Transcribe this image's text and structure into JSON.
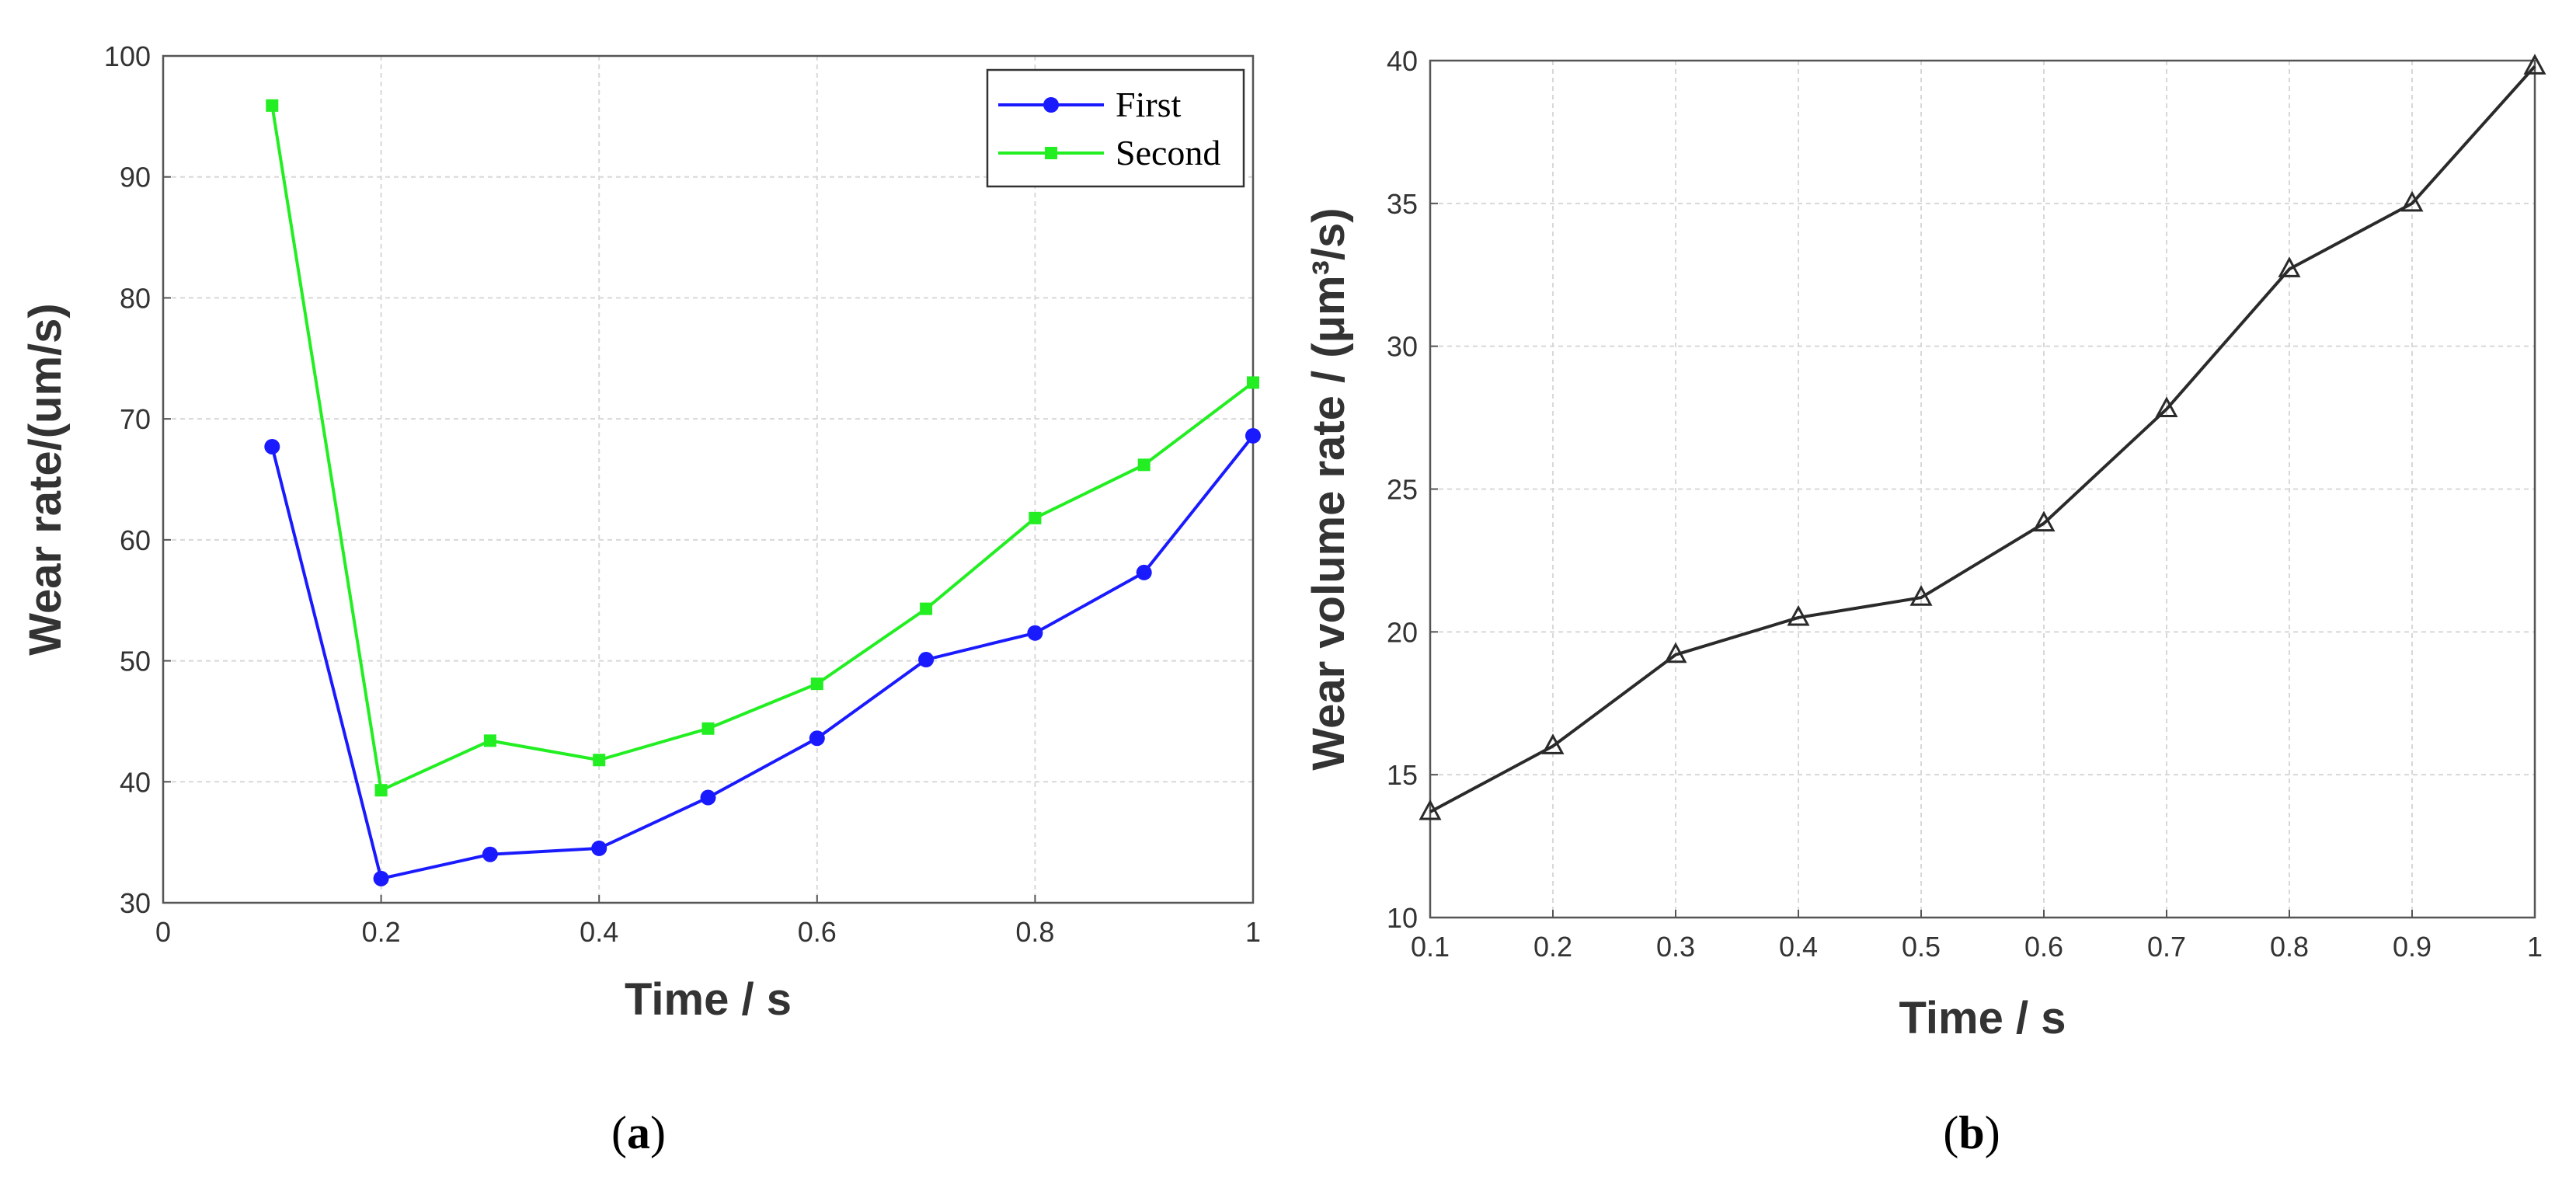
{
  "chart_data": [
    {
      "type": "line",
      "panel_label": "a",
      "title": "",
      "xlabel": "Time / s",
      "ylabel": "Wear rate/(um/s)",
      "xlim": [
        0,
        1
      ],
      "ylim": [
        30,
        100
      ],
      "xticks": [
        0,
        0.2,
        0.4,
        0.6,
        0.8,
        1
      ],
      "xtick_labels": [
        "0",
        "0.2",
        "0.4",
        "0.6",
        "0.8",
        "1"
      ],
      "yticks": [
        30,
        40,
        50,
        60,
        70,
        80,
        90,
        100
      ],
      "ytick_labels": [
        "30",
        "40",
        "50",
        "60",
        "70",
        "80",
        "90",
        "100"
      ],
      "grid": true,
      "legend": "top-right",
      "x": [
        0.1,
        0.2,
        0.3,
        0.4,
        0.5,
        0.6,
        0.7,
        0.8,
        0.9,
        1.0
      ],
      "series": [
        {
          "name": "First",
          "color": "#1a1aff",
          "marker": "circle",
          "values": [
            67.7,
            32.0,
            34.0,
            34.5,
            38.7,
            43.6,
            50.1,
            52.3,
            57.3,
            68.6
          ]
        },
        {
          "name": "Second",
          "color": "#22ee22",
          "marker": "square",
          "values": [
            95.9,
            39.3,
            43.4,
            41.8,
            44.4,
            48.1,
            54.3,
            61.8,
            66.2,
            73.0
          ]
        }
      ]
    },
    {
      "type": "line",
      "panel_label": "b",
      "title": "",
      "xlabel": "Time / s",
      "ylabel": "Wear volume rate / (μm³/s)",
      "xlim": [
        0.1,
        1
      ],
      "ylim": [
        10,
        40
      ],
      "xticks": [
        0.1,
        0.2,
        0.3,
        0.4,
        0.5,
        0.6,
        0.7,
        0.8,
        0.9,
        1
      ],
      "xtick_labels": [
        "0.1",
        "0.2",
        "0.3",
        "0.4",
        "0.5",
        "0.6",
        "0.7",
        "0.8",
        "0.9",
        "1"
      ],
      "yticks": [
        10,
        15,
        20,
        25,
        30,
        35,
        40
      ],
      "ytick_labels": [
        "10",
        "15",
        "20",
        "25",
        "30",
        "35",
        "40"
      ],
      "grid": true,
      "x": [
        0.1,
        0.2,
        0.3,
        0.4,
        0.5,
        0.6,
        0.7,
        0.8,
        0.9,
        1.0
      ],
      "series": [
        {
          "color": "#2a2a2a",
          "marker": "triangle",
          "values": [
            13.7,
            16.0,
            19.2,
            20.5,
            21.2,
            23.8,
            27.8,
            32.7,
            35.0,
            39.8
          ]
        }
      ]
    }
  ]
}
